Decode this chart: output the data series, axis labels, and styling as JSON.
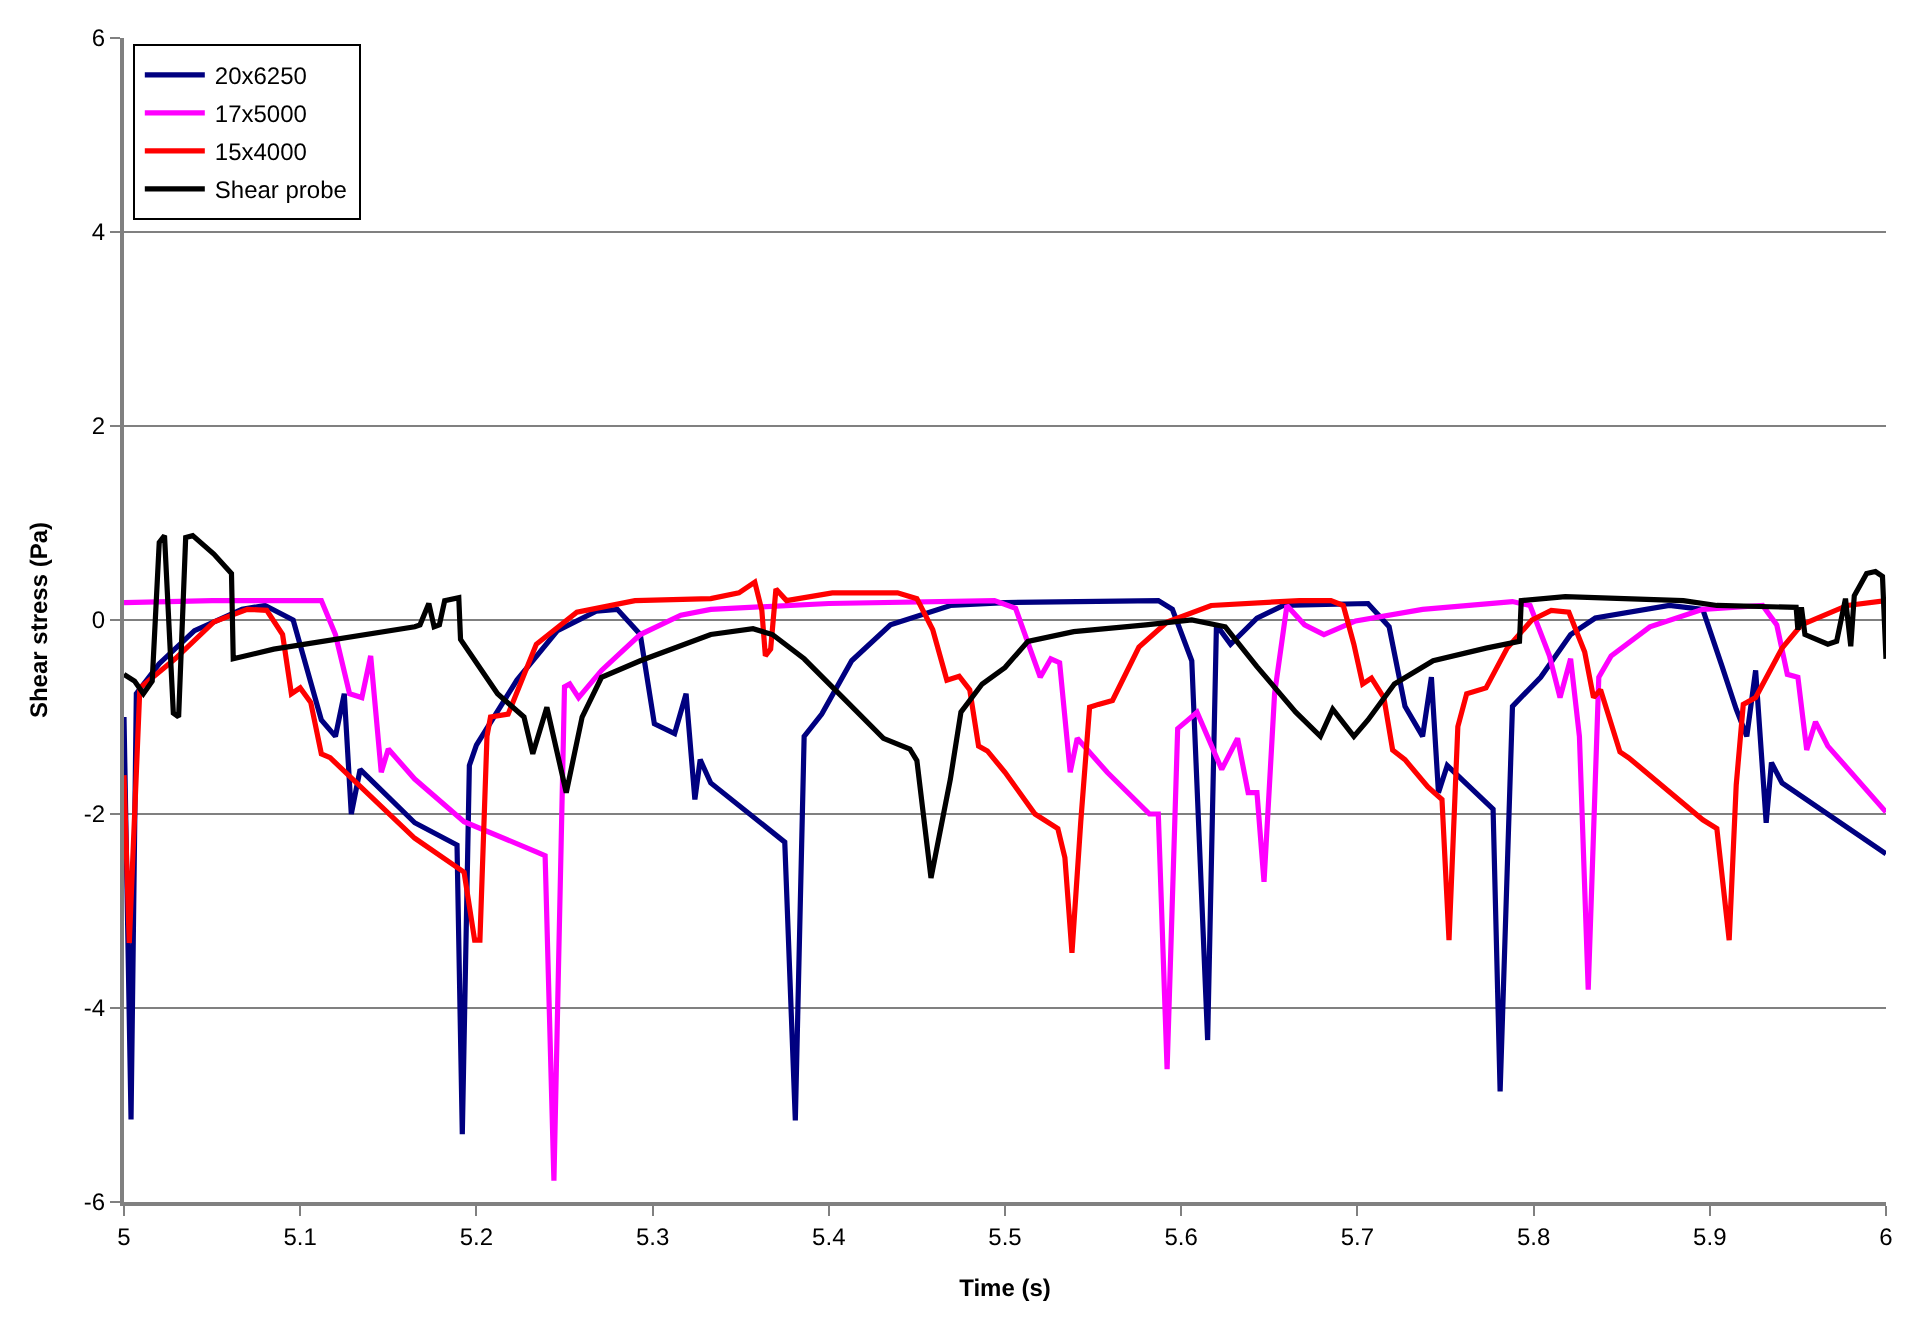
{
  "chart_data": {
    "type": "line",
    "xlabel": "Time (s)",
    "ylabel": "Shear stress (Pa)",
    "xlim": [
      5,
      6
    ],
    "ylim": [
      -6,
      6
    ],
    "xticks": [
      5,
      5.1,
      5.2,
      5.3,
      5.4,
      5.5,
      5.6,
      5.7,
      5.8,
      5.9,
      6
    ],
    "yticks": [
      -6,
      -4,
      -2,
      0,
      2,
      4,
      6
    ],
    "grid": "y",
    "legend": "top left",
    "marker": "none",
    "line_style": "solid",
    "series": [
      {
        "name": "20x6250",
        "color": "#000080",
        "x": [
          5.0,
          5.004,
          5.007,
          5.02,
          5.04,
          5.067,
          5.08,
          5.096,
          5.112,
          5.12,
          5.125,
          5.129,
          5.134,
          5.165,
          5.189,
          5.192,
          5.196,
          5.2,
          5.223,
          5.246,
          5.268,
          5.28,
          5.293,
          5.301,
          5.3125,
          5.319,
          5.324,
          5.327,
          5.333,
          5.375,
          5.381,
          5.386,
          5.396,
          5.413,
          5.435,
          5.469,
          5.5,
          5.587,
          5.595,
          5.606,
          5.615,
          5.62,
          5.628,
          5.643,
          5.658,
          5.706,
          5.718,
          5.727,
          5.737,
          5.742,
          5.746,
          5.751,
          5.777,
          5.781,
          5.788,
          5.804,
          5.821,
          5.835,
          5.877,
          5.896,
          5.907,
          5.915,
          5.921,
          5.926,
          5.932,
          5.935,
          5.941,
          6.0
        ],
        "values": [
          -1.0,
          -5.15,
          -0.76,
          -0.45,
          -0.11,
          0.11,
          0.15,
          0.0,
          -1.03,
          -1.2,
          -0.76,
          -2.0,
          -1.54,
          -2.09,
          -2.32,
          -5.3,
          -1.5,
          -1.29,
          -0.62,
          -0.11,
          0.09,
          0.11,
          -0.15,
          -1.07,
          -1.17,
          -0.76,
          -1.85,
          -1.44,
          -1.68,
          -2.29,
          -5.16,
          -1.2,
          -0.97,
          -0.42,
          -0.05,
          0.15,
          0.18,
          0.2,
          0.11,
          -0.42,
          -4.33,
          -0.05,
          -0.25,
          0.02,
          0.15,
          0.17,
          -0.07,
          -0.89,
          -1.2,
          -0.59,
          -1.78,
          -1.5,
          -1.95,
          -4.86,
          -0.89,
          -0.59,
          -0.15,
          0.02,
          0.15,
          0.11,
          -0.48,
          -0.92,
          -1.2,
          -0.52,
          -2.09,
          -1.47,
          -1.68,
          -2.41
        ]
      },
      {
        "name": "17x5000",
        "color": "#ff00ff",
        "x": [
          5.0,
          5.05,
          5.1,
          5.112,
          5.12,
          5.128,
          5.135,
          5.14,
          5.146,
          5.15,
          5.165,
          5.193,
          5.234,
          5.239,
          5.244,
          5.25,
          5.253,
          5.258,
          5.271,
          5.293,
          5.316,
          5.333,
          5.4,
          5.494,
          5.506,
          5.52,
          5.526,
          5.531,
          5.537,
          5.541,
          5.558,
          5.582,
          5.587,
          5.592,
          5.598,
          5.609,
          5.623,
          5.632,
          5.638,
          5.643,
          5.647,
          5.653,
          5.66,
          5.67,
          5.681,
          5.699,
          5.737,
          5.788,
          5.798,
          5.809,
          5.815,
          5.821,
          5.826,
          5.831,
          5.837,
          5.844,
          5.866,
          5.896,
          5.93,
          5.938,
          5.944,
          5.95,
          5.955,
          5.96,
          5.967,
          6.0
        ],
        "values": [
          0.18,
          0.2,
          0.2,
          0.2,
          -0.15,
          -0.76,
          -0.8,
          -0.37,
          -1.57,
          -1.33,
          -1.64,
          -2.08,
          -2.39,
          -2.43,
          -5.78,
          -0.69,
          -0.66,
          -0.8,
          -0.52,
          -0.15,
          0.05,
          0.11,
          0.17,
          0.2,
          0.12,
          -0.59,
          -0.4,
          -0.44,
          -1.57,
          -1.22,
          -1.57,
          -2.0,
          -2.0,
          -4.63,
          -1.12,
          -0.95,
          -1.54,
          -1.22,
          -1.78,
          -1.78,
          -2.7,
          -0.76,
          0.15,
          -0.05,
          -0.15,
          -0.01,
          0.11,
          0.19,
          0.15,
          -0.37,
          -0.8,
          -0.4,
          -1.2,
          -3.81,
          -0.59,
          -0.37,
          -0.07,
          0.11,
          0.15,
          -0.05,
          -0.56,
          -0.59,
          -1.34,
          -1.05,
          -1.3,
          -1.98
        ]
      },
      {
        "name": "15x4000",
        "color": "#ff0000",
        "x": [
          5.0,
          5.003,
          5.009,
          5.029,
          5.051,
          5.07,
          5.081,
          5.09,
          5.095,
          5.1,
          5.106,
          5.112,
          5.117,
          5.165,
          5.193,
          5.199,
          5.202,
          5.206,
          5.208,
          5.218,
          5.234,
          5.257,
          5.29,
          5.333,
          5.349,
          5.358,
          5.362,
          5.364,
          5.367,
          5.37,
          5.376,
          5.402,
          5.439,
          5.45,
          5.459,
          5.467,
          5.474,
          5.48,
          5.485,
          5.49,
          5.5,
          5.517,
          5.53,
          5.534,
          5.538,
          5.543,
          5.548,
          5.553,
          5.561,
          5.576,
          5.592,
          5.617,
          5.667,
          5.685,
          5.692,
          5.698,
          5.703,
          5.708,
          5.715,
          5.72,
          5.727,
          5.74,
          5.748,
          5.752,
          5.757,
          5.762,
          5.773,
          5.785,
          5.799,
          5.81,
          5.82,
          5.829,
          5.834,
          5.838,
          5.849,
          5.854,
          5.896,
          5.904,
          5.911,
          5.915,
          5.919,
          5.926,
          5.941,
          5.952,
          5.978,
          6.0
        ],
        "values": [
          -1.6,
          -3.33,
          -0.7,
          -0.4,
          -0.02,
          0.11,
          0.1,
          -0.15,
          -0.76,
          -0.7,
          -0.85,
          -1.38,
          -1.42,
          -2.25,
          -2.6,
          -3.3,
          -3.3,
          -1.2,
          -1.0,
          -0.97,
          -0.25,
          0.08,
          0.2,
          0.22,
          0.28,
          0.39,
          0.1,
          -0.37,
          -0.3,
          0.32,
          0.2,
          0.28,
          0.28,
          0.22,
          -0.1,
          -0.62,
          -0.58,
          -0.72,
          -1.3,
          -1.35,
          -1.57,
          -2.0,
          -2.15,
          -2.45,
          -3.43,
          -2.08,
          -0.9,
          -0.87,
          -0.83,
          -0.28,
          -0.02,
          0.15,
          0.2,
          0.2,
          0.15,
          -0.25,
          -0.66,
          -0.6,
          -0.8,
          -1.34,
          -1.44,
          -1.72,
          -1.85,
          -3.3,
          -1.1,
          -0.76,
          -0.7,
          -0.29,
          0.0,
          0.1,
          0.08,
          -0.33,
          -0.8,
          -0.72,
          -1.36,
          -1.42,
          -2.06,
          -2.15,
          -3.3,
          -1.7,
          -0.87,
          -0.8,
          -0.29,
          -0.05,
          0.15,
          0.2
        ]
      },
      {
        "name": "Shear probe",
        "color": "#000000",
        "x": [
          5.0,
          5.006,
          5.011,
          5.016,
          5.02,
          5.023,
          5.028,
          5.031,
          5.035,
          5.039,
          5.051,
          5.061,
          5.062,
          5.085,
          5.165,
          5.168,
          5.173,
          5.176,
          5.179,
          5.182,
          5.19,
          5.191,
          5.212,
          5.227,
          5.232,
          5.24,
          5.251,
          5.26,
          5.271,
          5.293,
          5.333,
          5.357,
          5.368,
          5.386,
          5.408,
          5.431,
          5.446,
          5.45,
          5.458,
          5.469,
          5.475,
          5.487,
          5.5,
          5.513,
          5.539,
          5.58,
          5.606,
          5.625,
          5.643,
          5.665,
          5.679,
          5.686,
          5.698,
          5.706,
          5.721,
          5.743,
          5.773,
          5.792,
          5.793,
          5.818,
          5.885,
          5.904,
          5.949,
          5.95,
          5.952,
          5.954,
          5.967,
          5.972,
          5.977,
          5.98,
          5.982,
          5.989,
          5.994,
          5.998,
          6.0
        ],
        "values": [
          -0.56,
          -0.63,
          -0.76,
          -0.63,
          0.8,
          0.87,
          -0.96,
          -1.0,
          0.85,
          0.87,
          0.68,
          0.48,
          -0.4,
          -0.3,
          -0.07,
          -0.05,
          0.17,
          -0.07,
          -0.05,
          0.2,
          0.23,
          -0.2,
          -0.76,
          -1.0,
          -1.38,
          -0.9,
          -1.78,
          -1.0,
          -0.59,
          -0.42,
          -0.15,
          -0.09,
          -0.15,
          -0.4,
          -0.8,
          -1.22,
          -1.33,
          -1.45,
          -2.66,
          -1.64,
          -0.95,
          -0.66,
          -0.49,
          -0.22,
          -0.12,
          -0.05,
          0.0,
          -0.07,
          -0.48,
          -0.95,
          -1.2,
          -0.92,
          -1.2,
          -1.03,
          -0.66,
          -0.42,
          -0.29,
          -0.22,
          0.2,
          0.24,
          0.2,
          0.15,
          0.13,
          -0.1,
          0.13,
          -0.15,
          -0.25,
          -0.22,
          0.22,
          -0.27,
          0.25,
          0.48,
          0.5,
          0.45,
          -0.4
        ]
      }
    ]
  }
}
